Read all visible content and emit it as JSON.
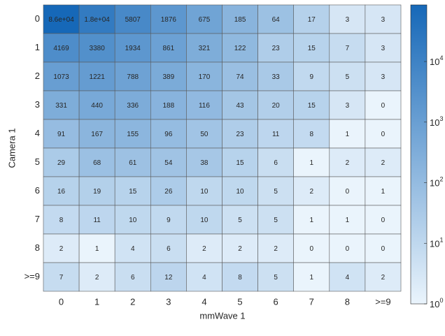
{
  "chart_data": {
    "type": "heatmap",
    "xlabel": "mmWave 1",
    "ylabel": "Camera 1",
    "x_categories": [
      "0",
      "1",
      "2",
      "3",
      "4",
      "5",
      "6",
      "7",
      "8",
      ">=9"
    ],
    "y_categories": [
      "0",
      "1",
      "2",
      "3",
      "4",
      "5",
      "6",
      "7",
      "8",
      ">=9"
    ],
    "values": [
      [
        86000,
        18000,
        5807,
        1876,
        675,
        185,
        64,
        17,
        3,
        3
      ],
      [
        4169,
        3380,
        1934,
        861,
        321,
        122,
        23,
        15,
        7,
        3
      ],
      [
        1073,
        1221,
        788,
        389,
        170,
        74,
        33,
        9,
        5,
        3
      ],
      [
        331,
        440,
        336,
        188,
        116,
        43,
        20,
        15,
        3,
        0
      ],
      [
        91,
        167,
        155,
        96,
        50,
        23,
        11,
        8,
        1,
        0
      ],
      [
        29,
        68,
        61,
        54,
        38,
        15,
        6,
        1,
        2,
        2
      ],
      [
        16,
        19,
        15,
        26,
        10,
        10,
        5,
        2,
        0,
        1
      ],
      [
        8,
        11,
        10,
        9,
        10,
        5,
        5,
        1,
        1,
        0
      ],
      [
        2,
        1,
        4,
        6,
        2,
        2,
        2,
        0,
        0,
        0
      ],
      [
        7,
        2,
        6,
        12,
        4,
        8,
        5,
        1,
        4,
        2
      ]
    ],
    "value_labels": [
      [
        "8.6e+04",
        "1.8e+04",
        "5807",
        "1876",
        "675",
        "185",
        "64",
        "17",
        "3",
        "3"
      ],
      [
        "4169",
        "3380",
        "1934",
        "861",
        "321",
        "122",
        "23",
        "15",
        "7",
        "3"
      ],
      [
        "1073",
        "1221",
        "788",
        "389",
        "170",
        "74",
        "33",
        "9",
        "5",
        "3"
      ],
      [
        "331",
        "440",
        "336",
        "188",
        "116",
        "43",
        "20",
        "15",
        "3",
        "0"
      ],
      [
        "91",
        "167",
        "155",
        "96",
        "50",
        "23",
        "11",
        "8",
        "1",
        "0"
      ],
      [
        "29",
        "68",
        "61",
        "54",
        "38",
        "15",
        "6",
        "1",
        "2",
        "2"
      ],
      [
        "16",
        "19",
        "15",
        "26",
        "10",
        "10",
        "5",
        "2",
        "0",
        "1"
      ],
      [
        "8",
        "11",
        "10",
        "9",
        "10",
        "5",
        "5",
        "1",
        "1",
        "0"
      ],
      [
        "2",
        "1",
        "4",
        "6",
        "2",
        "2",
        "2",
        "0",
        "0",
        "0"
      ],
      [
        "7",
        "2",
        "6",
        "12",
        "4",
        "8",
        "5",
        "1",
        "4",
        "2"
      ]
    ],
    "zlim": [
      1,
      86000
    ],
    "zscale": "log",
    "zticks": [
      {
        "value": 1,
        "label": "10^0"
      },
      {
        "value": 10,
        "label": "10^1"
      },
      {
        "value": 100,
        "label": "10^2"
      },
      {
        "value": 1000,
        "label": "10^3"
      },
      {
        "value": 10000,
        "label": "10^4"
      }
    ],
    "colormap": [
      "#eaf4fc",
      "#1668b8"
    ]
  }
}
